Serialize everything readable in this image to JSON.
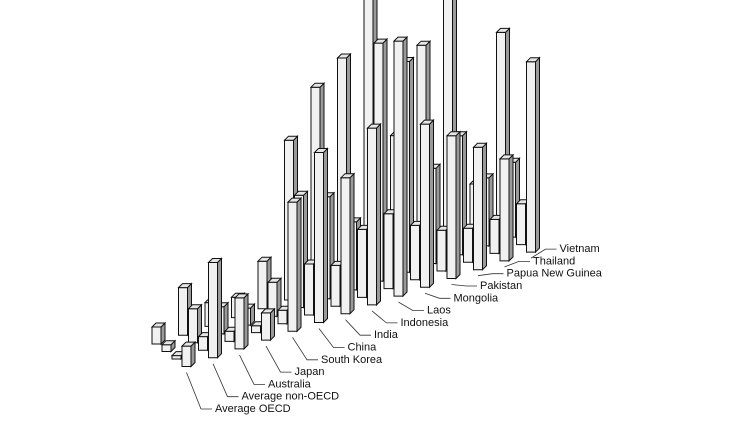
{
  "chart_data": {
    "type": "bar",
    "subtype": "3d-grouped-columns",
    "title": "",
    "xlabel": "",
    "ylabel": "",
    "grid": false,
    "legend": "none",
    "categories": [
      "Average OECD",
      "Average non-OECD",
      "Australia",
      "Japan",
      "South Korea",
      "China",
      "India",
      "Indonesia",
      "Laos",
      "Mongolia",
      "Pakistan",
      "Papua New Guinea",
      "Thailand",
      "Vietnam"
    ],
    "series": [
      {
        "values": [
          5,
          14,
          7,
          6,
          14,
          47,
          60,
          66,
          85,
          38,
          62,
          100,
          16,
          58
        ]
      },
      {
        "values": [
          2,
          10,
          8,
          5,
          10,
          33,
          30,
          20,
          70,
          62,
          28,
          35,
          20,
          22
        ]
      },
      {
        "values": [
          1,
          4,
          3,
          2,
          4,
          15,
          12,
          20,
          22,
          16,
          12,
          10,
          10,
          12
        ]
      },
      {
        "values": [
          6,
          28,
          15,
          8,
          38,
          50,
          40,
          52,
          75,
          48,
          42,
          36,
          30,
          56
        ]
      }
    ],
    "colors": {
      "front": "#f1f1f1",
      "side": "#9a9a9a",
      "top": "#e6e6e6",
      "outline": "#111111"
    }
  }
}
